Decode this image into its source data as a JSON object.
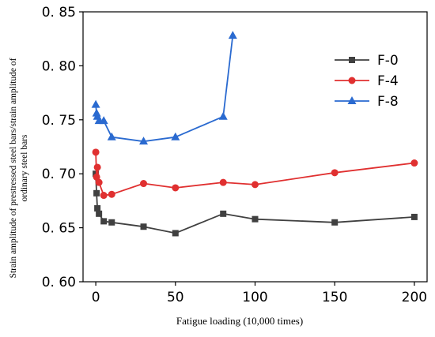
{
  "chart_data": {
    "type": "line",
    "xlabel": "Fatigue loading (10,000 times)",
    "ylabel": "Strain amplitude of prestressed steel bars/strain amplitude of ordinary steel bars",
    "ylabel_lines": [
      "Strain amplitude of prestressed steel bars/strain amplitude of",
      "ordinary steel bars"
    ],
    "xlim": [
      -8,
      208
    ],
    "ylim": [
      0.6,
      0.85
    ],
    "x_ticks": [
      0,
      50,
      100,
      150,
      200
    ],
    "x_tick_labels": [
      "0",
      "50",
      "100",
      "150",
      "200"
    ],
    "y_ticks": [
      0.6,
      0.65,
      0.7,
      0.75,
      0.8,
      0.85
    ],
    "y_tick_labels": [
      "0. 60",
      "0. 65",
      "0. 70",
      "0. 75",
      "0. 80",
      "0. 85"
    ],
    "grid": false,
    "legend_position": "top-right",
    "series": [
      {
        "name": "F-0",
        "color": "#404040",
        "marker": "square",
        "x": [
          0,
          0.5,
          1,
          2,
          5,
          10,
          30,
          50,
          80,
          100,
          150,
          200
        ],
        "y": [
          0.7,
          0.682,
          0.668,
          0.663,
          0.656,
          0.655,
          0.651,
          0.645,
          0.663,
          0.658,
          0.655,
          0.66
        ]
      },
      {
        "name": "F-4",
        "color": "#e03030",
        "marker": "circle",
        "x": [
          0,
          0.5,
          1,
          2,
          5,
          10,
          30,
          50,
          80,
          100,
          150,
          200
        ],
        "y": [
          0.72,
          0.697,
          0.706,
          0.692,
          0.68,
          0.681,
          0.691,
          0.687,
          0.692,
          0.69,
          0.701,
          0.71
        ]
      },
      {
        "name": "F-8",
        "color": "#2a6ad0",
        "marker": "triangle",
        "x": [
          0,
          0.5,
          1,
          2,
          5,
          10,
          30,
          50,
          80,
          86
        ],
        "y": [
          0.764,
          0.756,
          0.753,
          0.749,
          0.749,
          0.734,
          0.73,
          0.734,
          0.753,
          0.828
        ]
      }
    ]
  }
}
